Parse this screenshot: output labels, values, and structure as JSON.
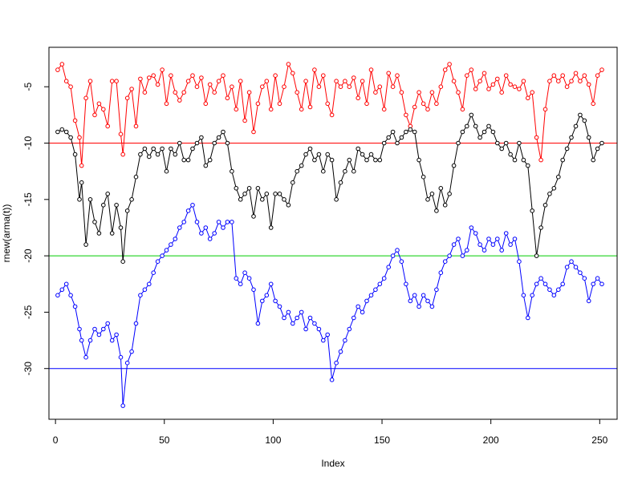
{
  "chart_data": {
    "type": "line",
    "title": "",
    "xlabel": "Index",
    "ylabel": "rnew(arma(t))",
    "xlim": [
      -3,
      258
    ],
    "ylim": [
      -34.5,
      -1.5
    ],
    "x_ticks": [
      0,
      50,
      100,
      150,
      200,
      250
    ],
    "x_tick_labels": [
      "0",
      "50",
      "100",
      "150",
      "200",
      "250"
    ],
    "y_ticks": [
      -30,
      -25,
      -20,
      -15,
      -10,
      -5
    ],
    "y_tick_labels": [
      "-30",
      "-25",
      "-20",
      "-15",
      "-10",
      "-5"
    ],
    "grid": false,
    "legend": "none",
    "hlines": [
      {
        "y": -10,
        "color": "#ff0000"
      },
      {
        "y": -20,
        "color": "#00cc00"
      },
      {
        "y": -30,
        "color": "#0000ff"
      }
    ],
    "series": [
      {
        "color": "#ff0000",
        "x": [
          1,
          3,
          5,
          7,
          9,
          11,
          12,
          14,
          16,
          18,
          20,
          22,
          24,
          26,
          28,
          30,
          31,
          33,
          35,
          37,
          39,
          41,
          43,
          45,
          47,
          49,
          51,
          53,
          55,
          57,
          59,
          61,
          63,
          65,
          67,
          69,
          71,
          73,
          75,
          77,
          79,
          81,
          83,
          85,
          87,
          89,
          91,
          93,
          95,
          97,
          99,
          101,
          103,
          105,
          107,
          109,
          111,
          113,
          115,
          117,
          119,
          121,
          123,
          125,
          127,
          129,
          131,
          133,
          135,
          137,
          139,
          141,
          143,
          145,
          147,
          149,
          151,
          153,
          155,
          157,
          159,
          161,
          163,
          165,
          167,
          169,
          171,
          173,
          175,
          177,
          179,
          181,
          183,
          185,
          187,
          189,
          191,
          193,
          195,
          197,
          199,
          201,
          203,
          205,
          207,
          209,
          211,
          213,
          215,
          217,
          219,
          221,
          223,
          225,
          227,
          229,
          231,
          233,
          235,
          237,
          239,
          241,
          243,
          245,
          247,
          249,
          251
        ],
        "values": [
          -3.5,
          -3.0,
          -4.5,
          -5.0,
          -8.0,
          -9.5,
          -12.0,
          -6.0,
          -4.5,
          -7.5,
          -6.5,
          -7.0,
          -8.5,
          -4.5,
          -4.5,
          -9.2,
          -11.0,
          -6.0,
          -5.2,
          -8.5,
          -4.3,
          -5.5,
          -4.2,
          -4.0,
          -4.8,
          -3.5,
          -6.5,
          -4.0,
          -5.5,
          -6.2,
          -5.5,
          -4.5,
          -4.0,
          -5.0,
          -4.2,
          -6.5,
          -4.8,
          -5.5,
          -4.5,
          -4.0,
          -6.0,
          -5.0,
          -7.0,
          -4.5,
          -8.0,
          -5.5,
          -9.0,
          -6.5,
          -5.0,
          -4.5,
          -7.0,
          -4.0,
          -6.5,
          -5.0,
          -3.0,
          -3.8,
          -5.5,
          -7.0,
          -4.5,
          -6.8,
          -3.5,
          -5.0,
          -4.0,
          -6.5,
          -7.5,
          -4.5,
          -5.0,
          -4.5,
          -5.0,
          -4.2,
          -6.0,
          -4.5,
          -6.5,
          -3.5,
          -5.5,
          -5.0,
          -7.0,
          -3.8,
          -5.0,
          -4.0,
          -5.5,
          -7.5,
          -8.5,
          -6.8,
          -5.5,
          -6.5,
          -7.0,
          -5.5,
          -6.5,
          -5.0,
          -3.5,
          -3.0,
          -4.5,
          -5.5,
          -7.0,
          -4.0,
          -3.5,
          -5.2,
          -4.5,
          -3.8,
          -5.2,
          -4.8,
          -4.3,
          -5.5,
          -4.0,
          -4.8,
          -5.0,
          -5.2,
          -4.5,
          -6.0,
          -5.5,
          -9.5,
          -11.5,
          -7.0,
          -4.5,
          -4.0,
          -4.5,
          -4.0,
          -5.0,
          -4.5,
          -3.8,
          -4.5,
          -4.0,
          -4.8,
          -6.5,
          -4.0,
          -3.5
        ],
        "name": ""
      },
      {
        "color": "#000000",
        "x": [
          1,
          3,
          5,
          7,
          9,
          11,
          12,
          14,
          16,
          18,
          20,
          22,
          24,
          26,
          28,
          30,
          31,
          33,
          35,
          37,
          39,
          41,
          43,
          45,
          47,
          49,
          51,
          53,
          55,
          57,
          59,
          61,
          63,
          65,
          67,
          69,
          71,
          73,
          75,
          77,
          79,
          81,
          83,
          85,
          87,
          89,
          91,
          93,
          95,
          97,
          99,
          101,
          103,
          105,
          107,
          109,
          111,
          113,
          115,
          117,
          119,
          121,
          123,
          125,
          127,
          129,
          131,
          133,
          135,
          137,
          139,
          141,
          143,
          145,
          147,
          149,
          151,
          153,
          155,
          157,
          159,
          161,
          163,
          165,
          167,
          169,
          171,
          173,
          175,
          177,
          179,
          181,
          183,
          185,
          187,
          189,
          191,
          193,
          195,
          197,
          199,
          201,
          203,
          205,
          207,
          209,
          211,
          213,
          215,
          217,
          219,
          221,
          223,
          225,
          227,
          229,
          231,
          233,
          235,
          237,
          239,
          241,
          243,
          245,
          247,
          249,
          251
        ],
        "values": [
          -9.0,
          -8.8,
          -9.0,
          -9.5,
          -11.0,
          -15.0,
          -13.5,
          -19.0,
          -15.0,
          -17.0,
          -18.0,
          -15.5,
          -14.5,
          -18.0,
          -15.5,
          -17.5,
          -20.5,
          -16.0,
          -15.0,
          -13.0,
          -11.0,
          -10.5,
          -11.2,
          -10.5,
          -11.0,
          -10.5,
          -12.5,
          -10.5,
          -11.0,
          -10.0,
          -11.5,
          -11.5,
          -10.5,
          -10.0,
          -9.5,
          -12.0,
          -11.5,
          -10.0,
          -9.5,
          -9.0,
          -10.0,
          -12.5,
          -14.0,
          -15.0,
          -14.5,
          -14.0,
          -16.5,
          -14.0,
          -15.0,
          -14.5,
          -17.5,
          -14.5,
          -14.5,
          -15.0,
          -15.5,
          -13.5,
          -12.5,
          -12.0,
          -11.0,
          -10.5,
          -11.5,
          -11.0,
          -12.5,
          -11.0,
          -11.5,
          -15.0,
          -13.5,
          -12.5,
          -11.5,
          -12.5,
          -10.5,
          -11.0,
          -11.5,
          -11.0,
          -11.5,
          -11.5,
          -10.0,
          -9.5,
          -9.0,
          -10.0,
          -9.5,
          -9.0,
          -8.8,
          -9.0,
          -11.5,
          -13.0,
          -15.0,
          -14.5,
          -16.0,
          -14.0,
          -15.5,
          -14.5,
          -12.0,
          -10.0,
          -9.0,
          -8.5,
          -7.5,
          -8.5,
          -9.5,
          -9.0,
          -8.5,
          -9.0,
          -10.0,
          -10.5,
          -10.0,
          -11.0,
          -11.5,
          -10.0,
          -11.5,
          -12.0,
          -16.0,
          -20.0,
          -17.5,
          -15.5,
          -14.5,
          -14.0,
          -13.0,
          -11.5,
          -10.5,
          -9.5,
          -8.5,
          -7.5,
          -8.0,
          -9.5,
          -11.5,
          -10.5,
          -10.0
        ],
        "name": ""
      },
      {
        "color": "#0000ff",
        "x": [
          1,
          3,
          5,
          7,
          9,
          11,
          12,
          14,
          16,
          18,
          20,
          22,
          24,
          26,
          28,
          30,
          31,
          33,
          35,
          37,
          39,
          41,
          43,
          45,
          47,
          49,
          51,
          53,
          55,
          57,
          59,
          61,
          63,
          65,
          67,
          69,
          71,
          73,
          75,
          77,
          79,
          81,
          83,
          85,
          87,
          89,
          91,
          93,
          95,
          97,
          99,
          101,
          103,
          105,
          107,
          109,
          111,
          113,
          115,
          117,
          119,
          121,
          123,
          125,
          127,
          129,
          131,
          133,
          135,
          137,
          139,
          141,
          143,
          145,
          147,
          149,
          151,
          153,
          155,
          157,
          159,
          161,
          163,
          165,
          167,
          169,
          171,
          173,
          175,
          177,
          179,
          181,
          183,
          185,
          187,
          189,
          191,
          193,
          195,
          197,
          199,
          201,
          203,
          205,
          207,
          209,
          211,
          213,
          215,
          217,
          219,
          221,
          223,
          225,
          227,
          229,
          231,
          233,
          235,
          237,
          239,
          241,
          243,
          245,
          247,
          249,
          251
        ],
        "values": [
          -23.5,
          -23.0,
          -22.5,
          -23.5,
          -24.5,
          -26.5,
          -27.5,
          -29.0,
          -27.5,
          -26.5,
          -27.0,
          -26.5,
          -26.0,
          -27.5,
          -27.0,
          -29.0,
          -33.3,
          -29.5,
          -28.5,
          -26.0,
          -23.5,
          -23.0,
          -22.5,
          -21.5,
          -20.5,
          -20.0,
          -19.5,
          -19.0,
          -18.5,
          -17.5,
          -17.0,
          -16.0,
          -15.5,
          -17.0,
          -18.0,
          -17.5,
          -18.5,
          -18.0,
          -17.0,
          -17.5,
          -17.0,
          -17.0,
          -22.0,
          -22.5,
          -21.5,
          -22.0,
          -23.0,
          -26.0,
          -24.0,
          -23.5,
          -22.5,
          -24.0,
          -24.5,
          -25.5,
          -25.0,
          -26.0,
          -25.5,
          -25.0,
          -26.5,
          -25.5,
          -26.0,
          -26.5,
          -27.5,
          -27.0,
          -31.0,
          -29.5,
          -28.5,
          -27.5,
          -26.5,
          -25.5,
          -24.5,
          -25.0,
          -24.0,
          -23.5,
          -23.0,
          -22.5,
          -22.0,
          -21.0,
          -20.0,
          -19.5,
          -20.5,
          -22.5,
          -24.0,
          -23.5,
          -24.5,
          -23.5,
          -24.0,
          -24.5,
          -23.0,
          -21.5,
          -20.5,
          -20.0,
          -19.0,
          -18.5,
          -20.0,
          -19.5,
          -17.5,
          -18.0,
          -19.0,
          -19.5,
          -18.5,
          -19.0,
          -18.5,
          -19.5,
          -18.0,
          -19.0,
          -18.5,
          -20.5,
          -23.5,
          -25.5,
          -23.5,
          -22.5,
          -22.0,
          -22.5,
          -23.0,
          -23.5,
          -23.0,
          -22.5,
          -21.0,
          -20.5,
          -21.0,
          -21.5,
          -22.0,
          -24.0,
          -22.5,
          -22.0,
          -22.5
        ],
        "name": ""
      }
    ]
  }
}
